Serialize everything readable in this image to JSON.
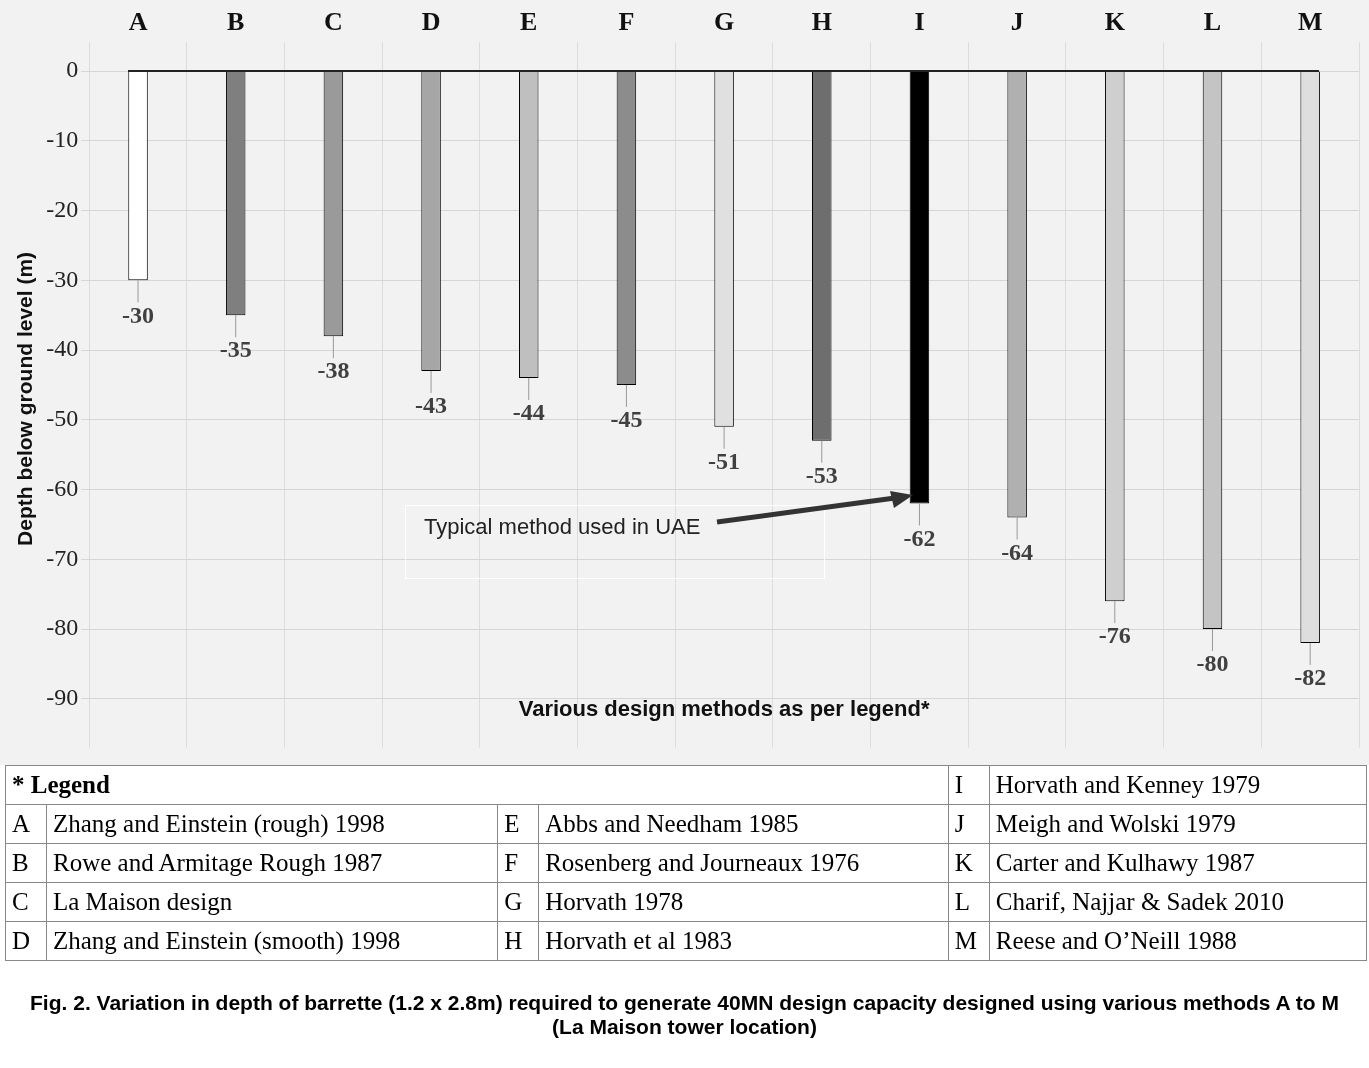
{
  "chart_data": {
    "type": "bar",
    "title": "Fig. 2.  Variation in depth of barrette (1.2 x 2.8m) required to generate 40MN design capacity designed using various methods A to M (La Maison tower location)",
    "xlabel": "Various design methods as per legend*",
    "ylabel": "Depth below ground level (m)",
    "legend_title": "* Legend",
    "categories": [
      "A",
      "B",
      "C",
      "D",
      "E",
      "F",
      "G",
      "H",
      "I",
      "J",
      "K",
      "L",
      "M"
    ],
    "values": [
      -30,
      -35,
      -38,
      -43,
      -44,
      -45,
      -51,
      -53,
      -62,
      -64,
      -76,
      -80,
      -82
    ],
    "colors": [
      "#ffffff",
      "#7f7f7f",
      "#9a9a9a",
      "#a6a6a6",
      "#bfbfbf",
      "#8c8c8c",
      "#e0e0e0",
      "#6e6e6e",
      "#000000",
      "#b0b0b0",
      "#cfcfcf",
      "#c4c4c4",
      "#dedede"
    ],
    "ylim": [
      -97,
      3
    ],
    "yticks": [
      0,
      -10,
      -20,
      -30,
      -40,
      -50,
      -60,
      -70,
      -80,
      -90
    ],
    "grid": true,
    "data_labels": true,
    "annotations": [
      "Typical method used in UAE",
      "Zhang and Einstein (rough) 1998",
      "Rowe and Armitage Rough 1987",
      "La Maison design",
      "Zhang and Einstein (smooth) 1998",
      "Abbs and Needham 1985",
      "Rosenberg and Journeaux 1976",
      "Horvath 1978",
      "Horvath et al 1983",
      "Horvath and Kenney 1979",
      "Meigh and Wolski  1979",
      "Carter and Kulhawy 1987",
      "Charif, Najjar & Sadek 2010",
      "Reese and O’Neill 1988"
    ]
  }
}
